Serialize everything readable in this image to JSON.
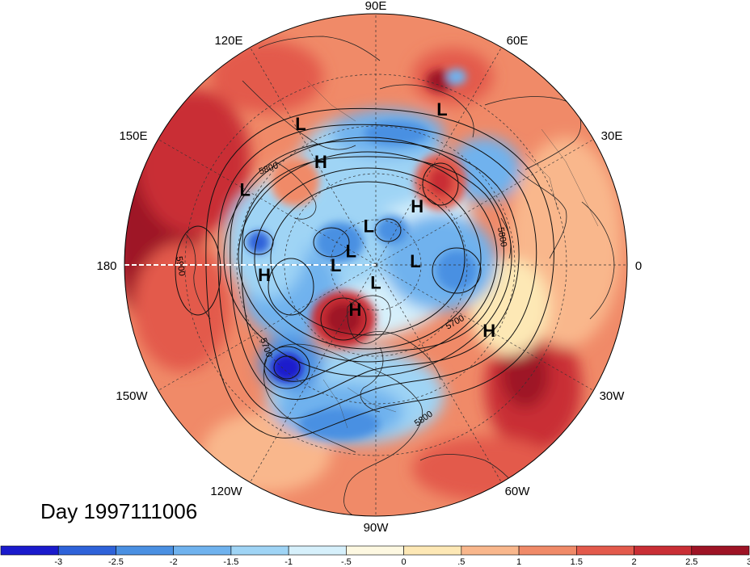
{
  "title": "Day 1997111006",
  "longitude_labels": {
    "lon_90E": "90E",
    "lon_60E": "60E",
    "lon_30E": "30E",
    "lon_0": "0",
    "lon_30W": "30W",
    "lon_60W": "60W",
    "lon_90W": "90W",
    "lon_120W": "120W",
    "lon_150W": "150W",
    "lon_180": "180",
    "lon_150E": "150E",
    "lon_120E": "120E"
  },
  "pressure_systems": [
    {
      "type": "L",
      "lon": 118,
      "lat": 25
    },
    {
      "type": "H",
      "lon": 118,
      "lat": 40
    },
    {
      "type": "L",
      "lon": 150,
      "lat": 28
    },
    {
      "type": "L",
      "lon": 67,
      "lat": 22
    },
    {
      "type": "H",
      "lon": 55,
      "lat": 58
    },
    {
      "type": "L",
      "lon": 100,
      "lat": 72
    },
    {
      "type": "L",
      "lon": 150,
      "lat": 77
    },
    {
      "type": "L",
      "lon": 180,
      "lat": 72
    },
    {
      "type": "L",
      "lon": 6,
      "lat": 72
    },
    {
      "type": "L",
      "lon": -90,
      "lat": 82
    },
    {
      "type": "H",
      "lon": -115,
      "lat": 68
    },
    {
      "type": "H",
      "lon": -175,
      "lat": 42
    },
    {
      "type": "H",
      "lon": -30,
      "lat": 35
    }
  ],
  "contour_labels": [
    "5800",
    "5900",
    "5700",
    "5800",
    "5700",
    "5800"
  ],
  "colorbar": {
    "ticks": [
      "-3",
      "-2.5",
      "-2",
      "-1.5",
      "-1",
      "-.5",
      "0",
      ".5",
      "1",
      "1.5",
      "2",
      "2.5",
      "3"
    ],
    "colors": [
      "#1a1acc",
      "#2e62d9",
      "#4a90e2",
      "#6fb2ee",
      "#9fd4f5",
      "#d6f0fb",
      "#fdf8e1",
      "#fde8b5",
      "#f9b78c",
      "#f08a68",
      "#e35a4c",
      "#c92e35",
      "#9e1325"
    ]
  }
}
